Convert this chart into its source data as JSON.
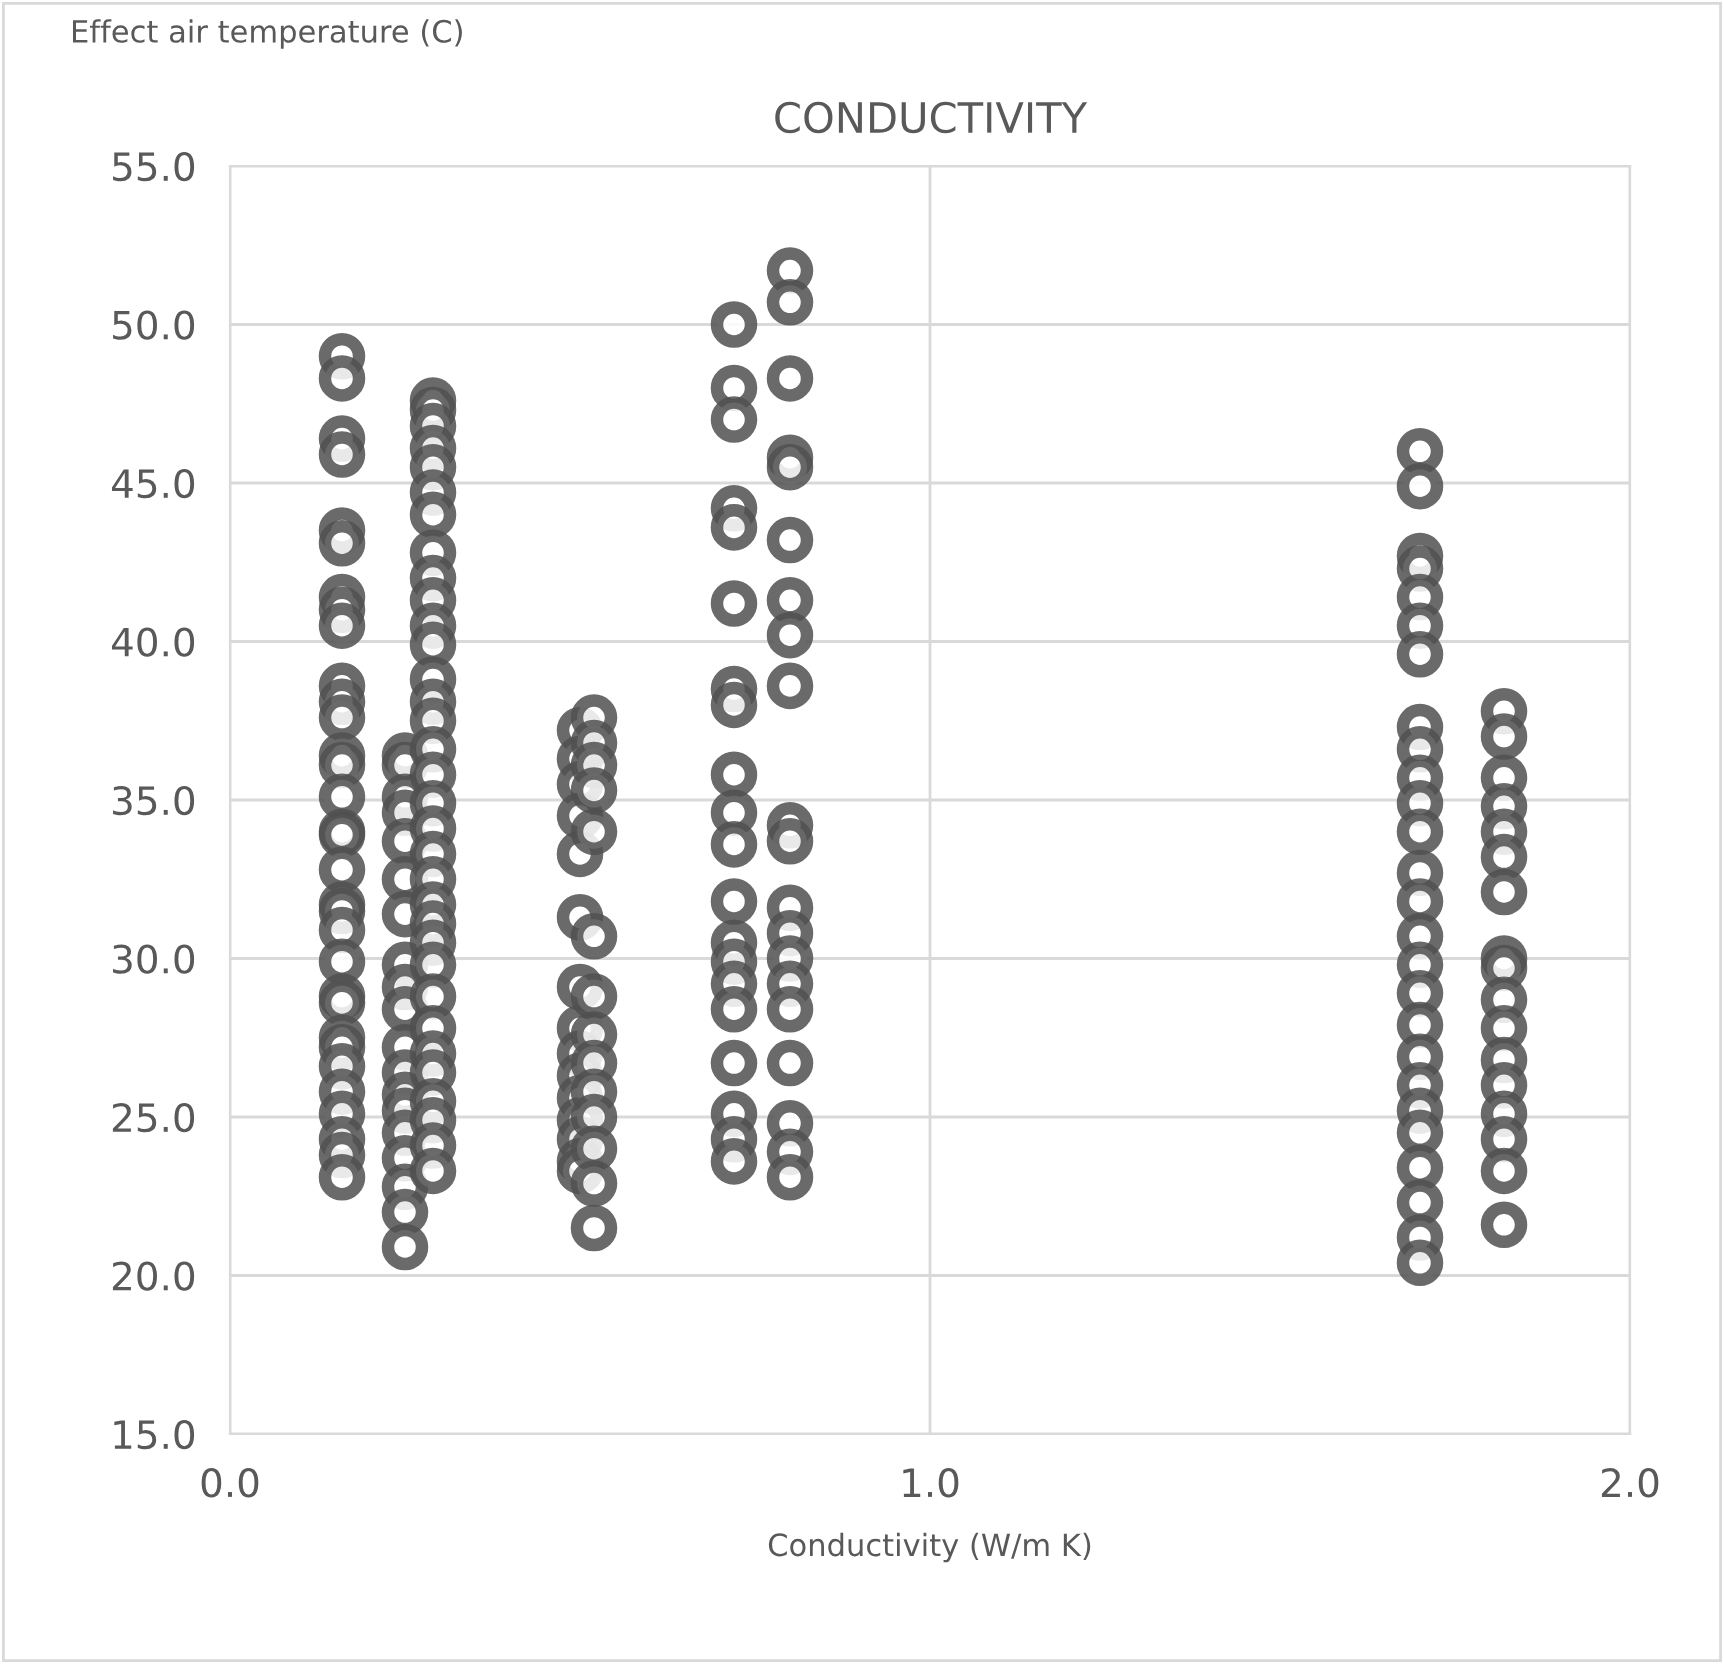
{
  "chart_data": {
    "type": "scatter",
    "title": "CONDUCTIVITY",
    "xlabel": "Conductivity (W/m K)",
    "ylabel": "Effect air temperature (C)",
    "xlim": [
      0,
      2
    ],
    "xticks": [
      {
        "value": 0,
        "label": "0.0"
      },
      {
        "value": 1,
        "label": "1.0"
      },
      {
        "value": 2,
        "label": "2.0"
      }
    ],
    "ylim": [
      15,
      55
    ],
    "yticks": [
      {
        "value": 15,
        "label": "15.0"
      },
      {
        "value": 20,
        "label": "20.0"
      },
      {
        "value": 25,
        "label": "25.0"
      },
      {
        "value": 30,
        "label": "30.0"
      },
      {
        "value": 35,
        "label": "35.0"
      },
      {
        "value": 40,
        "label": "40.0"
      },
      {
        "value": 45,
        "label": "45.0"
      },
      {
        "value": 50,
        "label": "50.0"
      },
      {
        "value": 55,
        "label": "55.0"
      }
    ],
    "grid": true,
    "legend": false,
    "marker": "circle",
    "series": [
      {
        "color": "#505050",
        "x": [
          0.16,
          0.16,
          0.16,
          0.16,
          0.16,
          0.16,
          0.16,
          0.16,
          0.16,
          0.16,
          0.16,
          0.16,
          0.16,
          0.16,
          0.16,
          0.16,
          0.16,
          0.16,
          0.16,
          0.16,
          0.16,
          0.16,
          0.16,
          0.16,
          0.16,
          0.16,
          0.16,
          0.16,
          0.16,
          0.16,
          0.16,
          0.16,
          0.25,
          0.25,
          0.25,
          0.25,
          0.25,
          0.25,
          0.25,
          0.25,
          0.25,
          0.25,
          0.25,
          0.25,
          0.25,
          0.25,
          0.25,
          0.25,
          0.25,
          0.25,
          0.25,
          0.29,
          0.29,
          0.29,
          0.29,
          0.29,
          0.29,
          0.29,
          0.29,
          0.29,
          0.29,
          0.29,
          0.29,
          0.29,
          0.29,
          0.29,
          0.29,
          0.29,
          0.29,
          0.29,
          0.29,
          0.29,
          0.29,
          0.29,
          0.29,
          0.29,
          0.29,
          0.29,
          0.29,
          0.29,
          0.29,
          0.29,
          0.29,
          0.29,
          0.5,
          0.5,
          0.5,
          0.5,
          0.5,
          0.5,
          0.5,
          0.5,
          0.5,
          0.5,
          0.5,
          0.5,
          0.5,
          0.5,
          0.5,
          0.52,
          0.52,
          0.52,
          0.52,
          0.52,
          0.52,
          0.52,
          0.52,
          0.52,
          0.52,
          0.52,
          0.52,
          0.52,
          0.52,
          0.72,
          0.72,
          0.72,
          0.72,
          0.72,
          0.72,
          0.72,
          0.72,
          0.72,
          0.72,
          0.72,
          0.72,
          0.72,
          0.72,
          0.72,
          0.72,
          0.72,
          0.72,
          0.72,
          0.72,
          0.8,
          0.8,
          0.8,
          0.8,
          0.8,
          0.8,
          0.8,
          0.8,
          0.8,
          0.8,
          0.8,
          0.8,
          0.8,
          0.8,
          0.8,
          0.8,
          0.8,
          0.8,
          0.8,
          0.8,
          1.7,
          1.7,
          1.7,
          1.7,
          1.7,
          1.7,
          1.7,
          1.7,
          1.7,
          1.7,
          1.7,
          1.7,
          1.7,
          1.7,
          1.7,
          1.7,
          1.7,
          1.7,
          1.7,
          1.7,
          1.7,
          1.7,
          1.7,
          1.7,
          1.7,
          1.7,
          1.82,
          1.82,
          1.82,
          1.82,
          1.82,
          1.82,
          1.82,
          1.82,
          1.82,
          1.82,
          1.82,
          1.82,
          1.82,
          1.82,
          1.82,
          1.82,
          1.82
        ],
        "values": [
          49.0,
          48.3,
          46.4,
          45.9,
          43.5,
          43.1,
          41.4,
          41.0,
          40.5,
          38.6,
          38.1,
          37.6,
          36.4,
          36.1,
          35.1,
          34.0,
          33.9,
          32.8,
          31.7,
          31.5,
          30.9,
          29.9,
          28.8,
          28.6,
          27.5,
          27.2,
          26.6,
          25.8,
          25.1,
          24.3,
          23.8,
          23.1,
          36.4,
          36.1,
          35.1,
          34.6,
          33.7,
          32.5,
          31.4,
          29.8,
          29.1,
          28.4,
          27.2,
          26.4,
          25.7,
          25.2,
          24.5,
          23.7,
          22.8,
          22.0,
          20.9,
          47.6,
          47.3,
          46.8,
          46.1,
          45.5,
          44.7,
          44.0,
          42.8,
          42.0,
          41.3,
          40.5,
          39.9,
          38.8,
          38.1,
          37.5,
          36.6,
          35.8,
          34.9,
          34.1,
          33.3,
          32.5,
          31.7,
          31.1,
          30.5,
          29.8,
          28.8,
          27.8,
          27.0,
          26.4,
          25.5,
          24.9,
          24.1,
          23.3,
          37.2,
          36.3,
          35.5,
          34.5,
          33.3,
          31.3,
          29.1,
          27.8,
          27.0,
          26.3,
          25.6,
          24.9,
          24.3,
          23.6,
          23.3,
          37.6,
          36.8,
          36.1,
          35.3,
          34.0,
          30.7,
          28.8,
          27.6,
          26.7,
          25.8,
          25.0,
          24.0,
          22.9,
          21.5,
          50.0,
          48.0,
          47.0,
          44.2,
          43.6,
          41.2,
          38.5,
          38.0,
          35.8,
          34.6,
          33.6,
          31.8,
          30.5,
          29.9,
          29.2,
          28.4,
          26.7,
          25.1,
          24.3,
          23.6,
          51.7,
          50.7,
          48.3,
          45.8,
          45.5,
          43.2,
          41.3,
          40.2,
          38.6,
          34.2,
          33.7,
          31.6,
          30.8,
          30.0,
          29.2,
          28.4,
          26.7,
          24.8,
          23.9,
          23.1,
          46.0,
          44.9,
          42.7,
          42.3,
          41.4,
          40.5,
          39.6,
          37.3,
          36.6,
          35.7,
          34.9,
          34.0,
          32.7,
          31.8,
          30.7,
          29.8,
          28.9,
          27.9,
          26.9,
          26.0,
          25.2,
          24.5,
          23.4,
          22.3,
          21.2,
          20.4,
          37.8,
          37.0,
          35.7,
          34.8,
          34.0,
          33.2,
          32.1,
          30.0,
          29.7,
          28.7,
          27.8,
          26.8,
          26.0,
          25.1,
          24.3,
          23.3,
          21.6
        ]
      }
    ]
  }
}
